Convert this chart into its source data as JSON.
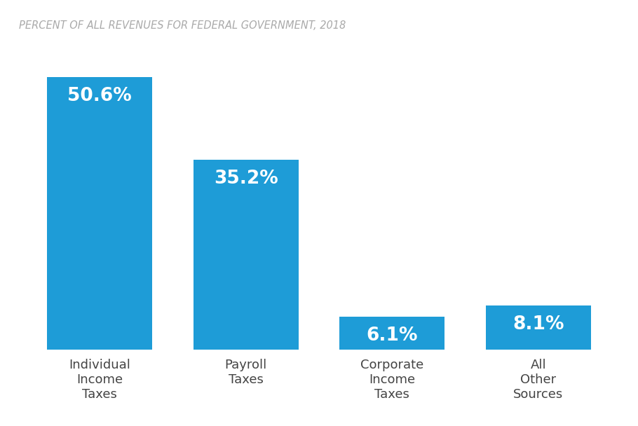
{
  "title": "PERCENT OF ALL REVENUES FOR FEDERAL GOVERNMENT, 2018",
  "categories": [
    "Individual\nIncome\nTaxes",
    "Payroll\nTaxes",
    "Corporate\nIncome\nTaxes",
    "All\nOther\nSources"
  ],
  "values": [
    50.6,
    35.2,
    6.1,
    8.1
  ],
  "labels": [
    "50.6%",
    "35.2%",
    "6.1%",
    "8.1%"
  ],
  "bar_color": "#1E9CD7",
  "label_color": "#FFFFFF",
  "title_color": "#AAAAAA",
  "tick_label_color": "#444444",
  "background_color": "#FFFFFF",
  "bar_width": 0.72,
  "ylim": [
    0,
    57
  ],
  "title_fontsize": 10.5,
  "label_fontsize": 19,
  "tick_label_fontsize": 13
}
